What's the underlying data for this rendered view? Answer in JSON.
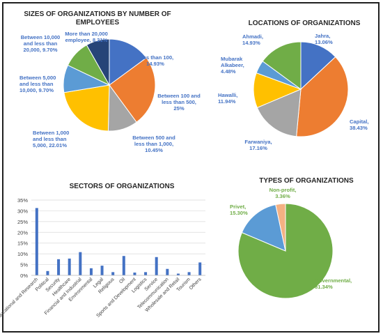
{
  "chart_data": [
    {
      "type": "pie",
      "title": "SIZES OF ORGANIZATIONS BY NUMBER OF EMPLOYEES",
      "slices": [
        {
          "label": "Less than 100, 14.93%",
          "value": 14.93,
          "color": "#4472C4"
        },
        {
          "label": "Between 100 and less than 500, 25%",
          "value": 25,
          "color": "#ED7D31"
        },
        {
          "label": "Between 500 and less than 1,000, 10.45%",
          "value": 10.45,
          "color": "#A5A5A5"
        },
        {
          "label": "Between 1,000 and less than 5,000, 22.01%",
          "value": 22.01,
          "color": "#FFC000"
        },
        {
          "label": "Between 5,000 and less than 10,000, 9.70%",
          "value": 9.7,
          "color": "#5B9BD5"
        },
        {
          "label": "Between 10,000 and less than 20,000, 9.70%",
          "value": 9.7,
          "color": "#70AD47"
        },
        {
          "label": "More than 20,000 employee, 8.21%",
          "value": 8.21,
          "color": "#264478"
        }
      ]
    },
    {
      "type": "pie",
      "title": "LOCATIONS OF ORGANIZATIONS",
      "slices": [
        {
          "label": "Jahra, 13.06%",
          "value": 13.06,
          "color": "#4472C4"
        },
        {
          "label": "Capital, 38.43%",
          "value": 38.43,
          "color": "#ED7D31"
        },
        {
          "label": "Farwaniya, 17.16%",
          "value": 17.16,
          "color": "#A5A5A5"
        },
        {
          "label": "Hawalli, 11.94%",
          "value": 11.94,
          "color": "#FFC000"
        },
        {
          "label": "Mubarak Alkabeer, 4.48%",
          "value": 4.48,
          "color": "#5B9BD5"
        },
        {
          "label": "Ahmadi, 14.93%",
          "value": 14.93,
          "color": "#70AD47"
        }
      ]
    },
    {
      "type": "bar",
      "title": "SECTORS OF ORGANIZATIONS",
      "categories": [
        "Educational and Research",
        "Political",
        "Security",
        "Healthcare",
        "Financial and Industrial",
        "Environmental",
        "Legal",
        "Religious",
        "Oil",
        "Sports and Development",
        "Logistics",
        "Service",
        "Telecommunication",
        "Wholesale and Retail",
        "Tourism",
        "Others"
      ],
      "values": [
        31.3,
        2.0,
        7.5,
        7.8,
        10.8,
        3.3,
        4.5,
        1.5,
        9.0,
        1.3,
        1.5,
        8.5,
        3.0,
        0.8,
        1.5,
        6.0
      ],
      "ylim": [
        0,
        35
      ],
      "yticks": [
        "0%",
        "5%",
        "10%",
        "15%",
        "20%",
        "25%",
        "30%",
        "35%"
      ],
      "grid": true,
      "color": "#4472C4"
    },
    {
      "type": "pie",
      "title": "TYPES OF ORGANIZATIONS",
      "slices": [
        {
          "label": "Governmental, 81.34%",
          "value": 81.34,
          "color": "#70AD47"
        },
        {
          "label": "Privet, 15.30%",
          "value": 15.3,
          "color": "#5B9BD5"
        },
        {
          "label": "Non-profit, 3.36%",
          "value": 3.36,
          "color": "#F4B183"
        }
      ]
    }
  ]
}
